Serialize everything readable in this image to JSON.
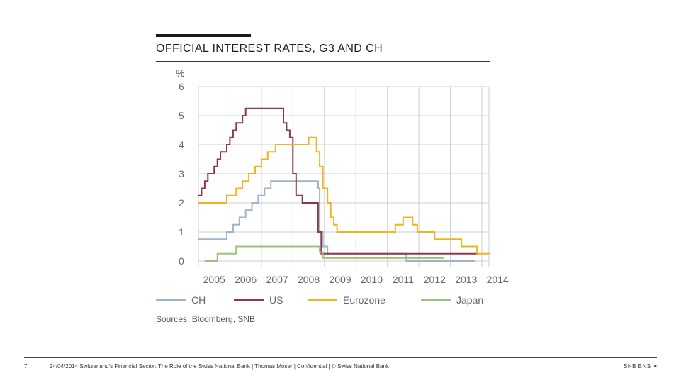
{
  "slide": {
    "title": "OFFICIAL INTEREST RATES, G3 AND CH",
    "source": "Sources: Bloomberg, SNB",
    "page_number": "7",
    "footer": "24/04/2014 Switzerland's Financial Sector: The Role of the Swiss National Bank | Thomas Moser | Confidential | © Swiss National Bank",
    "logo": "SNB BNS ✦"
  },
  "chart_data": {
    "type": "line",
    "title": "OFFICIAL INTEREST RATES, G3 AND CH",
    "ylabel": "%",
    "xlabel": "",
    "xlim": [
      2005,
      2014
    ],
    "ylim": [
      0,
      6
    ],
    "x_ticks": [
      "2005",
      "2006",
      "2007",
      "2008",
      "2009",
      "2010",
      "2011",
      "2012",
      "2013",
      "2014"
    ],
    "y_ticks": [
      "0",
      "1",
      "2",
      "3",
      "4",
      "5",
      "6"
    ],
    "grid": true,
    "legend_position": "bottom",
    "series": [
      {
        "name": "CH",
        "color": "#9db4c8",
        "step": true,
        "points": [
          [
            2005.0,
            0.75
          ],
          [
            2005.9,
            0.75
          ],
          [
            2005.9,
            1.0
          ],
          [
            2006.1,
            1.0
          ],
          [
            2006.1,
            1.25
          ],
          [
            2006.3,
            1.25
          ],
          [
            2006.3,
            1.5
          ],
          [
            2006.5,
            1.5
          ],
          [
            2006.5,
            1.75
          ],
          [
            2006.7,
            1.75
          ],
          [
            2006.7,
            2.0
          ],
          [
            2006.9,
            2.0
          ],
          [
            2006.9,
            2.25
          ],
          [
            2007.1,
            2.25
          ],
          [
            2007.1,
            2.5
          ],
          [
            2007.3,
            2.5
          ],
          [
            2007.3,
            2.75
          ],
          [
            2008.8,
            2.75
          ],
          [
            2008.8,
            2.5
          ],
          [
            2008.85,
            2.5
          ],
          [
            2008.85,
            1.0
          ],
          [
            2008.95,
            1.0
          ],
          [
            2008.95,
            0.5
          ],
          [
            2009.1,
            0.5
          ],
          [
            2009.1,
            0.25
          ],
          [
            2011.6,
            0.25
          ],
          [
            2011.6,
            0.0
          ],
          [
            2013.8,
            0.0
          ]
        ]
      },
      {
        "name": "US",
        "color": "#8b3a4a",
        "step": true,
        "points": [
          [
            2005.0,
            2.25
          ],
          [
            2005.1,
            2.25
          ],
          [
            2005.1,
            2.5
          ],
          [
            2005.2,
            2.5
          ],
          [
            2005.2,
            2.75
          ],
          [
            2005.3,
            2.75
          ],
          [
            2005.3,
            3.0
          ],
          [
            2005.5,
            3.0
          ],
          [
            2005.5,
            3.25
          ],
          [
            2005.6,
            3.25
          ],
          [
            2005.6,
            3.5
          ],
          [
            2005.7,
            3.5
          ],
          [
            2005.7,
            3.75
          ],
          [
            2005.9,
            3.75
          ],
          [
            2005.9,
            4.0
          ],
          [
            2006.0,
            4.0
          ],
          [
            2006.0,
            4.25
          ],
          [
            2006.1,
            4.25
          ],
          [
            2006.1,
            4.5
          ],
          [
            2006.2,
            4.5
          ],
          [
            2006.2,
            4.75
          ],
          [
            2006.4,
            4.75
          ],
          [
            2006.4,
            5.0
          ],
          [
            2006.5,
            5.0
          ],
          [
            2006.5,
            5.25
          ],
          [
            2007.7,
            5.25
          ],
          [
            2007.7,
            4.75
          ],
          [
            2007.8,
            4.75
          ],
          [
            2007.8,
            4.5
          ],
          [
            2007.9,
            4.5
          ],
          [
            2007.9,
            4.25
          ],
          [
            2008.0,
            4.25
          ],
          [
            2008.0,
            3.0
          ],
          [
            2008.1,
            3.0
          ],
          [
            2008.1,
            2.25
          ],
          [
            2008.3,
            2.25
          ],
          [
            2008.3,
            2.0
          ],
          [
            2008.8,
            2.0
          ],
          [
            2008.8,
            1.0
          ],
          [
            2008.9,
            1.0
          ],
          [
            2008.9,
            0.25
          ],
          [
            2013.9,
            0.25
          ]
        ]
      },
      {
        "name": "Eurozone",
        "color": "#f0b323",
        "step": true,
        "points": [
          [
            2005.0,
            2.0
          ],
          [
            2005.9,
            2.0
          ],
          [
            2005.9,
            2.25
          ],
          [
            2006.2,
            2.25
          ],
          [
            2006.2,
            2.5
          ],
          [
            2006.4,
            2.5
          ],
          [
            2006.4,
            2.75
          ],
          [
            2006.6,
            2.75
          ],
          [
            2006.6,
            3.0
          ],
          [
            2006.8,
            3.0
          ],
          [
            2006.8,
            3.25
          ],
          [
            2007.0,
            3.25
          ],
          [
            2007.0,
            3.5
          ],
          [
            2007.2,
            3.5
          ],
          [
            2007.2,
            3.75
          ],
          [
            2007.45,
            3.75
          ],
          [
            2007.45,
            4.0
          ],
          [
            2008.5,
            4.0
          ],
          [
            2008.5,
            4.25
          ],
          [
            2008.75,
            4.25
          ],
          [
            2008.75,
            3.75
          ],
          [
            2008.85,
            3.75
          ],
          [
            2008.85,
            3.25
          ],
          [
            2008.95,
            3.25
          ],
          [
            2008.95,
            2.5
          ],
          [
            2009.1,
            2.5
          ],
          [
            2009.1,
            2.0
          ],
          [
            2009.2,
            2.0
          ],
          [
            2009.2,
            1.5
          ],
          [
            2009.3,
            1.5
          ],
          [
            2009.3,
            1.25
          ],
          [
            2009.4,
            1.25
          ],
          [
            2009.4,
            1.0
          ],
          [
            2011.25,
            1.0
          ],
          [
            2011.25,
            1.25
          ],
          [
            2011.5,
            1.25
          ],
          [
            2011.5,
            1.5
          ],
          [
            2011.8,
            1.5
          ],
          [
            2011.8,
            1.25
          ],
          [
            2011.95,
            1.25
          ],
          [
            2011.95,
            1.0
          ],
          [
            2012.5,
            1.0
          ],
          [
            2012.5,
            0.75
          ],
          [
            2013.35,
            0.75
          ],
          [
            2013.35,
            0.5
          ],
          [
            2013.85,
            0.5
          ],
          [
            2013.85,
            0.25
          ],
          [
            2014.25,
            0.25
          ]
        ]
      },
      {
        "name": "Japan",
        "color": "#9dc07a",
        "step": true,
        "points": [
          [
            2005.2,
            0.0
          ],
          [
            2005.6,
            0.0
          ],
          [
            2005.6,
            0.25
          ],
          [
            2006.2,
            0.25
          ],
          [
            2006.2,
            0.5
          ],
          [
            2008.85,
            0.5
          ],
          [
            2008.85,
            0.3
          ],
          [
            2008.95,
            0.3
          ],
          [
            2008.95,
            0.1
          ],
          [
            2012.8,
            0.1
          ]
        ]
      }
    ]
  }
}
